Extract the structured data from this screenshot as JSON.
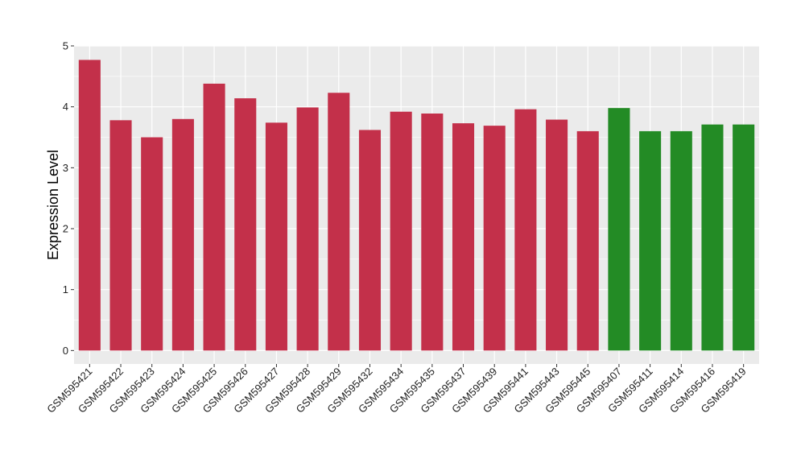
{
  "chart_data": {
    "type": "bar",
    "title": "",
    "xlabel": "",
    "ylabel": "Expression Level",
    "ylim": [
      -0.22,
      5.0
    ],
    "yticks": [
      0,
      1,
      2,
      3,
      4,
      5
    ],
    "grid": true,
    "legend": "none",
    "colors": {
      "group_a": "#C3304A",
      "group_b": "#238B25",
      "panel_bg": "#EBEBEB",
      "grid": "#FFFFFF"
    },
    "categories": [
      "GSM595421",
      "GSM595422",
      "GSM595423",
      "GSM595424",
      "GSM595425",
      "GSM595426",
      "GSM595427",
      "GSM595428",
      "GSM595429",
      "GSM595432",
      "GSM595434",
      "GSM595435",
      "GSM595437",
      "GSM595439",
      "GSM595441",
      "GSM595443",
      "GSM595445",
      "GSM595407",
      "GSM595411",
      "GSM595414",
      "GSM595416",
      "GSM595419"
    ],
    "values": [
      4.77,
      3.78,
      3.5,
      3.8,
      4.38,
      4.14,
      3.74,
      3.99,
      4.23,
      3.62,
      3.92,
      3.89,
      3.73,
      3.69,
      3.96,
      3.79,
      3.6,
      3.98,
      3.6,
      3.6,
      3.71,
      3.71
    ],
    "groups": [
      "a",
      "a",
      "a",
      "a",
      "a",
      "a",
      "a",
      "a",
      "a",
      "a",
      "a",
      "a",
      "a",
      "a",
      "a",
      "a",
      "a",
      "b",
      "b",
      "b",
      "b",
      "b"
    ]
  }
}
